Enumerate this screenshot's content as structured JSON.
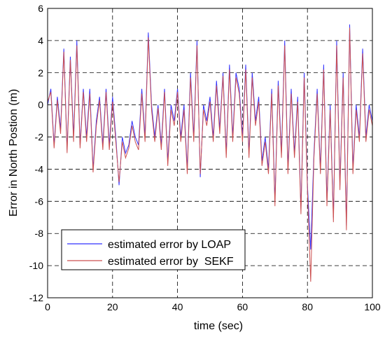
{
  "chart_data": {
    "type": "line",
    "xlabel": "time (sec)",
    "ylabel": "Error in North Postion (m)",
    "x": [
      0,
      1,
      2,
      3,
      4,
      5,
      6,
      7,
      8,
      9,
      10,
      11,
      12,
      13,
      14,
      15,
      16,
      17,
      18,
      19,
      20,
      21,
      22,
      23,
      24,
      25,
      26,
      27,
      28,
      29,
      30,
      31,
      32,
      33,
      34,
      35,
      36,
      37,
      38,
      39,
      40,
      41,
      42,
      43,
      44,
      45,
      46,
      47,
      48,
      49,
      50,
      51,
      52,
      53,
      54,
      55,
      56,
      57,
      58,
      59,
      60,
      61,
      62,
      63,
      64,
      65,
      66,
      67,
      68,
      69,
      70,
      71,
      72,
      73,
      74,
      75,
      76,
      77,
      78,
      79,
      80,
      81,
      82,
      83,
      84,
      85,
      86,
      87,
      88,
      89,
      90,
      91,
      92,
      93,
      94,
      95,
      96,
      97,
      98,
      99,
      100
    ],
    "series": [
      {
        "name": "estimated error by LOAP",
        "color": "#3333ff",
        "values": [
          0,
          1,
          -2.5,
          0.5,
          -1.5,
          3.5,
          -2.8,
          3,
          -2,
          4,
          -2.5,
          1,
          -2,
          1,
          -4,
          -1,
          0.5,
          -2.5,
          1,
          -2.5,
          0.5,
          -2,
          -5,
          -2,
          -3,
          -2.5,
          -1,
          -2,
          -2.5,
          1,
          -2,
          4.5,
          0,
          -2,
          0,
          -2.5,
          1,
          -3.5,
          0,
          -1,
          1,
          -2,
          0,
          -4,
          2,
          -2,
          4,
          -4.5,
          0,
          -1,
          0.5,
          -2,
          1.5,
          -1.5,
          2,
          -3,
          2.5,
          -2,
          2,
          1,
          -2,
          2.5,
          -3,
          2,
          -1,
          0.5,
          -3.5,
          -2,
          -4,
          1,
          -6,
          1.5,
          -3,
          4,
          -4,
          1,
          -3,
          0.5,
          -6.5,
          2,
          -5,
          -9,
          -3,
          1,
          -4,
          2.5,
          -6,
          0,
          -7,
          4,
          -5,
          2,
          -7.5,
          5,
          -4,
          0,
          -2,
          3.5,
          -2,
          0,
          -1
        ]
      },
      {
        "name": "estimated error by  SEKF",
        "color": "#cc5050",
        "values": [
          0.2,
          0.8,
          -2.7,
          0.3,
          -1.8,
          3.3,
          -3,
          2.8,
          -2.3,
          3.7,
          -2.7,
          0.8,
          -2.3,
          0.7,
          -4.2,
          -1.3,
          0.3,
          -2.8,
          0.8,
          -2.8,
          0.2,
          -2.3,
          -4.8,
          -2.3,
          -3.3,
          -2.7,
          -1.3,
          -2.3,
          -2.8,
          0.7,
          -2.3,
          4.2,
          -0.3,
          -2.3,
          -0.2,
          -2.8,
          0.8,
          -3.8,
          -0.3,
          -1.3,
          0.8,
          -2.3,
          -0.3,
          -4.3,
          1.7,
          -2.3,
          3.7,
          -4.3,
          -0.3,
          -1.3,
          0.2,
          -2.3,
          1.2,
          -1.8,
          1.8,
          -3.3,
          2.2,
          -2.3,
          1.7,
          0.7,
          -2.3,
          2.2,
          -3.3,
          1.7,
          -1.3,
          0.2,
          -3.8,
          -2.3,
          -4.3,
          0.7,
          -6.3,
          1.2,
          -3.3,
          3.7,
          -4.3,
          0.7,
          -3.3,
          0.2,
          -6.8,
          1.7,
          -5.3,
          -11,
          -3.3,
          0.7,
          -4.3,
          2.2,
          -6.3,
          -0.3,
          -7.3,
          3.7,
          -5.3,
          1.7,
          -7.8,
          4.8,
          -4.3,
          -0.3,
          -2.3,
          3.2,
          -2.3,
          -0.3,
          -1.3
        ]
      }
    ],
    "xlim": [
      0,
      100
    ],
    "xticks": [
      0,
      20,
      40,
      60,
      80,
      100
    ],
    "ylim": [
      -12,
      6
    ],
    "yticks": [
      -12,
      -10,
      -8,
      -6,
      -4,
      -2,
      0,
      2,
      4,
      6
    ],
    "grid": true
  }
}
